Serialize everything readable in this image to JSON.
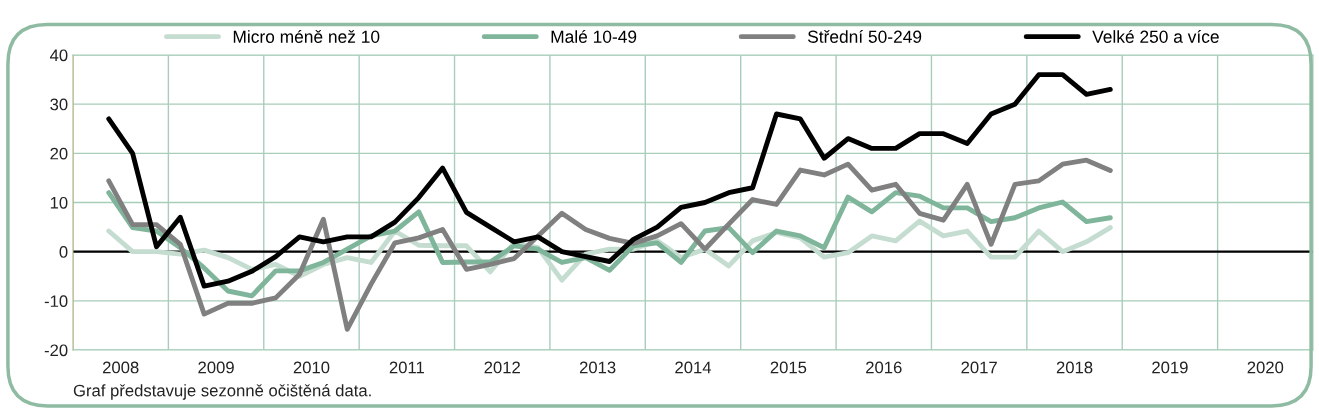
{
  "chart_data": {
    "type": "line",
    "x": [
      2008.375,
      2008.625,
      2008.875,
      2009.125,
      2009.375,
      2009.625,
      2009.875,
      2010.125,
      2010.375,
      2010.625,
      2010.875,
      2011.125,
      2011.375,
      2011.625,
      2011.875,
      2012.125,
      2012.375,
      2012.625,
      2012.875,
      2013.125,
      2013.375,
      2013.625,
      2013.875,
      2014.125,
      2014.375,
      2014.625,
      2014.875,
      2015.125,
      2015.375,
      2015.625,
      2015.875,
      2016.125,
      2016.375,
      2016.625,
      2016.875,
      2017.125,
      2017.375,
      2017.625,
      2017.875,
      2018.125,
      2018.375,
      2018.625,
      2018.875
    ],
    "series": [
      {
        "name": "Micro méně než 10",
        "color": "#c5ddd0",
        "values": [
          4.2,
          0,
          0,
          -0.5,
          0.3,
          -1.2,
          -3.6,
          -2.6,
          -5,
          -2.6,
          -1.2,
          -2.2,
          4.2,
          1.3,
          1.2,
          1.2,
          -4.1,
          1.8,
          0.8,
          -5.8,
          -0.5,
          0.5,
          0.5,
          2.2,
          -1.2,
          0.5,
          -2.9,
          2.2,
          3.9,
          2.8,
          -1.1,
          -0.2,
          3.2,
          2.2,
          6.2,
          3.2,
          4.2,
          -1.1,
          -1.1,
          4.2,
          0,
          2,
          4.9
        ]
      },
      {
        "name": "Malé 10-49",
        "color": "#7fb59a",
        "values": [
          12,
          4.9,
          4.2,
          0.8,
          -3.3,
          -8,
          -9,
          -3.9,
          -3.9,
          -2.2,
          0.5,
          3.2,
          4.2,
          8.1,
          -2.2,
          -2.1,
          -2.1,
          1.2,
          0.5,
          -2.2,
          -1.2,
          -3.8,
          1.2,
          1.8,
          -2.2,
          4.2,
          4.9,
          -0.2,
          4.2,
          3.2,
          0.8,
          11.1,
          8.1,
          12,
          11.3,
          8.9,
          8.9,
          6.1,
          6.9,
          8.9,
          10.1,
          6.1,
          6.9
        ]
      },
      {
        "name": "Střední 50-249",
        "color": "#808080",
        "values": [
          14.4,
          5.5,
          5.5,
          1.5,
          -12.7,
          -10.5,
          -10.5,
          -9.4,
          -4.6,
          6.6,
          -15.8,
          -6.6,
          1.8,
          2.8,
          4.5,
          -3.6,
          -2.6,
          -1.4,
          3.2,
          7.8,
          4.5,
          2.7,
          1.7,
          3.2,
          5.7,
          0.5,
          5.6,
          10.6,
          9.6,
          16.6,
          15.6,
          17.8,
          12.5,
          13.7,
          7.8,
          6.4,
          13.7,
          1.5,
          13.7,
          14.4,
          17.8,
          18.6,
          16.5
        ]
      },
      {
        "name": "Velké 250 a více",
        "color": "#000000",
        "values": [
          27,
          20,
          1,
          7,
          -7,
          -6,
          -4,
          -1,
          3,
          2,
          3,
          3,
          6,
          11,
          17,
          8,
          5,
          2,
          3,
          0,
          -1,
          -2,
          2.5,
          5,
          9,
          10,
          12,
          13,
          28,
          27,
          19,
          23,
          21,
          21,
          24,
          24,
          22,
          28,
          30,
          36,
          36,
          32,
          33
        ]
      }
    ],
    "xlim": [
      2008,
      2021
    ],
    "xticks": [
      {
        "value": 2008,
        "label": null
      },
      {
        "value": 2008.5,
        "label": "2008"
      },
      {
        "value": 2009,
        "label": null
      },
      {
        "value": 2009.5,
        "label": "2009"
      },
      {
        "value": 2010,
        "label": null
      },
      {
        "value": 2010.5,
        "label": "2010"
      },
      {
        "value": 2011,
        "label": null
      },
      {
        "value": 2011.5,
        "label": "2011"
      },
      {
        "value": 2012,
        "label": null
      },
      {
        "value": 2012.5,
        "label": "2012"
      },
      {
        "value": 2013,
        "label": null
      },
      {
        "value": 2013.5,
        "label": "2013"
      },
      {
        "value": 2014,
        "label": null
      },
      {
        "value": 2014.5,
        "label": "2014"
      },
      {
        "value": 2015,
        "label": null
      },
      {
        "value": 2015.5,
        "label": "2015"
      },
      {
        "value": 2016,
        "label": null
      },
      {
        "value": 2016.5,
        "label": "2016"
      },
      {
        "value": 2017,
        "label": null
      },
      {
        "value": 2017.5,
        "label": "2017"
      },
      {
        "value": 2018,
        "label": null
      },
      {
        "value": 2018.5,
        "label": "2018"
      },
      {
        "value": 2019,
        "label": null
      },
      {
        "value": 2019.5,
        "label": "2019"
      },
      {
        "value": 2020,
        "label": null
      },
      {
        "value": 2020.5,
        "label": "2020"
      },
      {
        "value": 2021,
        "label": null
      }
    ],
    "ylim": [
      -20,
      40
    ],
    "yticks": [
      -20,
      -10,
      0,
      10,
      20,
      30,
      40
    ],
    "ref_lines": [
      {
        "axis": "y",
        "value": 0,
        "color": "#000000"
      }
    ],
    "grid": true,
    "legend": "top",
    "marker": "none",
    "line_style": "solid",
    "annotations": [
      "Graf představuje sezonně očištěná data."
    ]
  }
}
